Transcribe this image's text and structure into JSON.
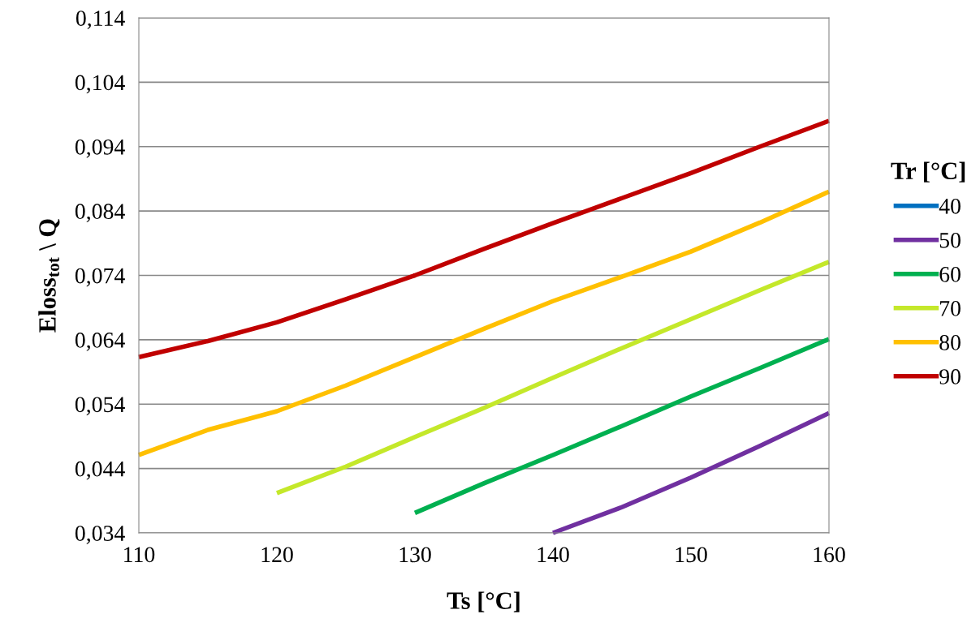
{
  "chart_data": {
    "type": "line",
    "xlabel": "Ts [°C]",
    "ylabel": "Eloss$_{tot}$ \\ Q",
    "legend_title": "Tr [°C]",
    "legend": "right",
    "grid": "y",
    "marker": "none",
    "line_style": "solid",
    "xlim": [
      110,
      160
    ],
    "xticks": [
      110,
      120,
      130,
      140,
      150,
      160
    ],
    "ylim": [
      0.034,
      0.114
    ],
    "yticks": [
      {
        "value": 0.034,
        "label": "0,034"
      },
      {
        "value": 0.044,
        "label": "0,044"
      },
      {
        "value": 0.054,
        "label": "0,054"
      },
      {
        "value": 0.064,
        "label": "0,064"
      },
      {
        "value": 0.074,
        "label": "0,074"
      },
      {
        "value": 0.084,
        "label": "0,084"
      },
      {
        "value": 0.094,
        "label": "0,094"
      },
      {
        "value": 0.104,
        "label": "0,104"
      },
      {
        "value": 0.114,
        "label": "0,114"
      }
    ],
    "series": [
      {
        "name": "40",
        "color": "#0070c0"
      },
      {
        "name": "50",
        "color": "#7030a0",
        "x": [
          140,
          145,
          150,
          155,
          160
        ],
        "values": [
          0.034,
          0.038,
          0.0426,
          0.0475,
          0.0526
        ]
      },
      {
        "name": "60",
        "color": "#00b050",
        "x": [
          130,
          135,
          140,
          145,
          150,
          155,
          160
        ],
        "values": [
          0.0371,
          0.0417,
          0.0461,
          0.0506,
          0.0552,
          0.0596,
          0.0641
        ]
      },
      {
        "name": "70",
        "color": "#c4e82a",
        "x": [
          120,
          125,
          130,
          135,
          140,
          145,
          150,
          155,
          160
        ],
        "values": [
          0.0402,
          0.0443,
          0.0489,
          0.0534,
          0.0581,
          0.0627,
          0.0672,
          0.0717,
          0.0761
        ]
      },
      {
        "name": "80",
        "color": "#ffc000",
        "x": [
          110,
          115,
          120,
          125,
          130,
          135,
          140,
          145,
          150,
          155,
          160
        ],
        "values": [
          0.0461,
          0.05,
          0.0529,
          0.0569,
          0.0613,
          0.0657,
          0.07,
          0.0738,
          0.0777,
          0.0822,
          0.087
        ]
      },
      {
        "name": "90",
        "color": "#c00000",
        "x": [
          110,
          115,
          120,
          125,
          130,
          135,
          140,
          145,
          150,
          155,
          160
        ],
        "values": [
          0.0613,
          0.0638,
          0.0667,
          0.0703,
          0.074,
          0.0781,
          0.0821,
          0.086,
          0.0899,
          0.094,
          0.098
        ]
      }
    ]
  }
}
